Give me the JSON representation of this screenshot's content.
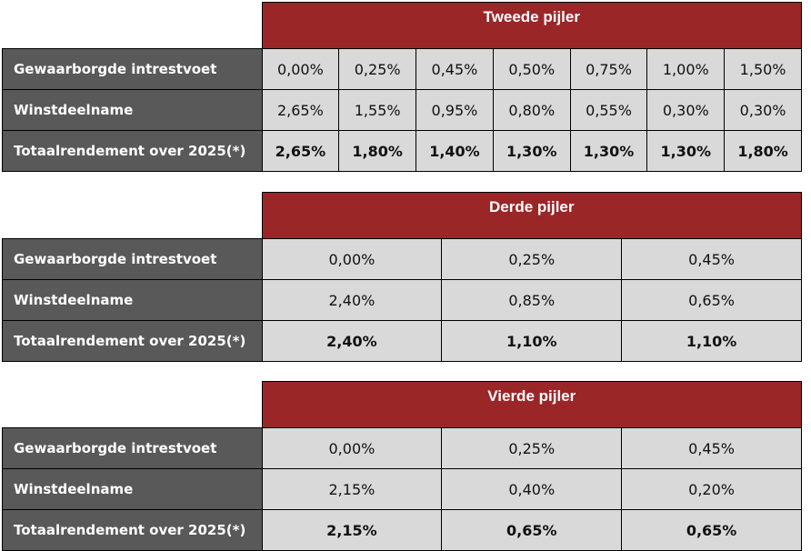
{
  "row_labels": [
    "Gewaarborgde intrestvoet",
    "Winstdeelname",
    "Totaalrendement over 2025(*)"
  ],
  "colors": {
    "header": "#9b2628",
    "label_bg": "#595959",
    "cell_bg": "#d9d9d9"
  },
  "tables": [
    {
      "title": "Tweede pijler",
      "rows": [
        [
          "0,00%",
          "0,25%",
          "0,45%",
          "0,50%",
          "0,75%",
          "1,00%",
          "1,50%"
        ],
        [
          "2,65%",
          "1,55%",
          "0,95%",
          "0,80%",
          "0,55%",
          "0,30%",
          "0,30%"
        ],
        [
          "2,65%",
          "1,80%",
          "1,40%",
          "1,30%",
          "1,30%",
          "1,30%",
          "1,80%"
        ]
      ]
    },
    {
      "title": "Derde pijler",
      "rows": [
        [
          "0,00%",
          "0,25%",
          "0,45%"
        ],
        [
          "2,40%",
          "0,85%",
          "0,65%"
        ],
        [
          "2,40%",
          "1,10%",
          "1,10%"
        ]
      ]
    },
    {
      "title": "Vierde pijler",
      "rows": [
        [
          "0,00%",
          "0,25%",
          "0,45%"
        ],
        [
          "2,15%",
          "0,40%",
          "0,20%"
        ],
        [
          "2,15%",
          "0,65%",
          "0,65%"
        ]
      ]
    }
  ]
}
